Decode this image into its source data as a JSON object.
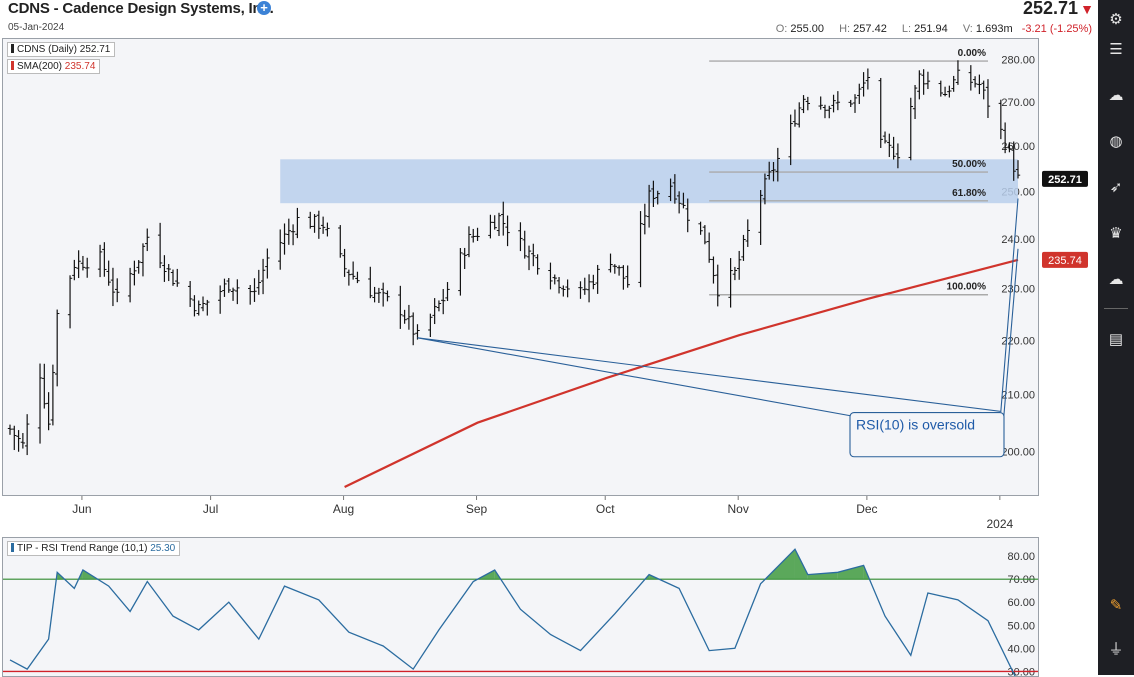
{
  "header": {
    "title": "CDNS - Cadence Design Systems, Inc.",
    "date": "05-Jan-2024",
    "last_price": "252.71",
    "open_label": "O:",
    "open": "255.00",
    "high_label": "H:",
    "high": "257.42",
    "low_label": "L:",
    "low": "251.94",
    "volume_label": "V:",
    "volume": "1.693m",
    "change": "-3.21 (-1.25%)"
  },
  "colors": {
    "accent": "#3b82d6",
    "negative": "#d0222a",
    "sma": "#d0342c",
    "rsi_line": "#2b6ca0",
    "zone": "#b8cfec",
    "overbought_fill": "#3f9a3f",
    "sidebar": "#1e1f24"
  },
  "sidebar_icons": [
    "sliders-icon",
    "settings-icon",
    "brain-icon",
    "globe-icon",
    "rocket-icon",
    "trophy-icon",
    "cloud-icon",
    "document-icon",
    "pencil-icon",
    "plug-icon"
  ],
  "chart_data": [
    {
      "type": "ohlc",
      "legend": [
        {
          "label": "CDNS (Daily)",
          "value": "252.71",
          "color": "#222222"
        },
        {
          "label": "SMA(200)",
          "value": "235.74",
          "color": "#d0342c"
        }
      ],
      "y_axis": {
        "scale": "log",
        "ticks": [
          200,
          210,
          220,
          230,
          240,
          250,
          260,
          270,
          280
        ],
        "range": [
          194,
          283
        ]
      },
      "x_axis": {
        "labels": [
          "Jun",
          "Jul",
          "Aug",
          "Sep",
          "Oct",
          "Nov",
          "Dec",
          "2024"
        ]
      },
      "last_price_tag": "252.71",
      "sma_tag": "235.74",
      "support_zone": [
        247.5,
        257
      ],
      "fib_levels": [
        {
          "label": "0.00%",
          "value": 279.6
        },
        {
          "label": "50.00%",
          "value": 254.2
        },
        {
          "label": "61.80%",
          "value": 248.0
        },
        {
          "label": "100.00%",
          "value": 228.8
        }
      ],
      "annotation": "RSI(10) is oversold",
      "close_path": [
        {
          "date": "2023-05-15",
          "close": 203.9
        },
        {
          "date": "2023-05-18",
          "close": 201.0
        },
        {
          "date": "2023-05-22",
          "close": 214.0
        },
        {
          "date": "2023-05-24",
          "close": 205.0
        },
        {
          "date": "2023-05-26",
          "close": 225.0
        },
        {
          "date": "2023-05-30",
          "close": 235.0
        },
        {
          "date": "2023-06-05",
          "close": 236.0
        },
        {
          "date": "2023-06-09",
          "close": 228.0
        },
        {
          "date": "2023-06-14",
          "close": 236.0
        },
        {
          "date": "2023-06-16",
          "close": 240.5
        },
        {
          "date": "2023-06-22",
          "close": 232.0
        },
        {
          "date": "2023-06-28",
          "close": 226.0
        },
        {
          "date": "2023-07-05",
          "close": 231.0
        },
        {
          "date": "2023-07-11",
          "close": 229.0
        },
        {
          "date": "2023-07-14",
          "close": 236.0
        },
        {
          "date": "2023-07-21",
          "close": 244.0
        },
        {
          "date": "2023-07-27",
          "close": 243.0
        },
        {
          "date": "2023-08-01",
          "close": 234.0
        },
        {
          "date": "2023-08-08",
          "close": 229.0
        },
        {
          "date": "2023-08-14",
          "close": 226.0
        },
        {
          "date": "2023-08-18",
          "close": 220.5
        },
        {
          "date": "2023-08-24",
          "close": 228.0
        },
        {
          "date": "2023-08-30",
          "close": 240.0
        },
        {
          "date": "2023-09-06",
          "close": 244.5
        },
        {
          "date": "2023-09-12",
          "close": 238.0
        },
        {
          "date": "2023-09-19",
          "close": 232.0
        },
        {
          "date": "2023-09-25",
          "close": 229.0
        },
        {
          "date": "2023-10-02",
          "close": 236.0
        },
        {
          "date": "2023-10-06",
          "close": 231.0
        },
        {
          "date": "2023-10-11",
          "close": 249.0
        },
        {
          "date": "2023-10-16",
          "close": 251.5
        },
        {
          "date": "2023-10-20",
          "close": 245.0
        },
        {
          "date": "2023-10-24",
          "close": 240.0
        },
        {
          "date": "2023-10-27",
          "close": 230.0
        },
        {
          "date": "2023-10-31",
          "close": 233.0
        },
        {
          "date": "2023-11-06",
          "close": 249.5
        },
        {
          "date": "2023-11-10",
          "close": 257.0
        },
        {
          "date": "2023-11-16",
          "close": 271.0
        },
        {
          "date": "2023-11-22",
          "close": 269.0
        },
        {
          "date": "2023-11-28",
          "close": 270.5
        },
        {
          "date": "2023-12-01",
          "close": 276.0
        },
        {
          "date": "2023-12-04",
          "close": 260.0
        },
        {
          "date": "2023-12-08",
          "close": 258.5
        },
        {
          "date": "2023-12-13",
          "close": 276.0
        },
        {
          "date": "2023-12-19",
          "close": 272.0
        },
        {
          "date": "2023-12-22",
          "close": 276.0
        },
        {
          "date": "2023-12-27",
          "close": 274.0
        },
        {
          "date": "2024-01-02",
          "close": 261.0
        },
        {
          "date": "2024-01-05",
          "close": 252.71
        }
      ],
      "sma_path": [
        {
          "date": "2023-08-01",
          "value": 194.0
        },
        {
          "date": "2023-09-01",
          "value": 205.0
        },
        {
          "date": "2023-10-01",
          "value": 213.0
        },
        {
          "date": "2023-11-01",
          "value": 221.0
        },
        {
          "date": "2023-12-01",
          "value": 228.0
        },
        {
          "date": "2024-01-05",
          "value": 235.74
        }
      ]
    },
    {
      "type": "line",
      "legend": [
        {
          "label": "TIP - RSI Trend Range (10,1)",
          "value": "25.30",
          "color": "#2b6ca0"
        }
      ],
      "y_axis": {
        "ticks": [
          30,
          40,
          50,
          60,
          70,
          80
        ],
        "range": [
          28,
          87
        ]
      },
      "overbought": 70,
      "oversold": 30,
      "values": [
        {
          "date": "2023-05-15",
          "value": 35
        },
        {
          "date": "2023-05-19",
          "value": 31
        },
        {
          "date": "2023-05-24",
          "value": 44
        },
        {
          "date": "2023-05-26",
          "value": 73
        },
        {
          "date": "2023-05-30",
          "value": 66
        },
        {
          "date": "2023-06-01",
          "value": 74
        },
        {
          "date": "2023-06-07",
          "value": 67
        },
        {
          "date": "2023-06-12",
          "value": 56
        },
        {
          "date": "2023-06-16",
          "value": 69
        },
        {
          "date": "2023-06-22",
          "value": 54
        },
        {
          "date": "2023-06-28",
          "value": 48
        },
        {
          "date": "2023-07-05",
          "value": 60
        },
        {
          "date": "2023-07-12",
          "value": 44
        },
        {
          "date": "2023-07-18",
          "value": 67
        },
        {
          "date": "2023-07-26",
          "value": 61
        },
        {
          "date": "2023-08-02",
          "value": 47
        },
        {
          "date": "2023-08-10",
          "value": 41
        },
        {
          "date": "2023-08-17",
          "value": 31
        },
        {
          "date": "2023-08-23",
          "value": 48
        },
        {
          "date": "2023-08-31",
          "value": 69
        },
        {
          "date": "2023-09-05",
          "value": 74
        },
        {
          "date": "2023-09-11",
          "value": 57
        },
        {
          "date": "2023-09-18",
          "value": 46
        },
        {
          "date": "2023-09-25",
          "value": 39
        },
        {
          "date": "2023-10-03",
          "value": 55
        },
        {
          "date": "2023-10-11",
          "value": 72
        },
        {
          "date": "2023-10-18",
          "value": 66
        },
        {
          "date": "2023-10-25",
          "value": 39
        },
        {
          "date": "2023-10-31",
          "value": 40
        },
        {
          "date": "2023-11-06",
          "value": 68
        },
        {
          "date": "2023-11-14",
          "value": 83
        },
        {
          "date": "2023-11-17",
          "value": 72
        },
        {
          "date": "2023-11-24",
          "value": 73
        },
        {
          "date": "2023-11-30",
          "value": 76
        },
        {
          "date": "2023-12-05",
          "value": 54
        },
        {
          "date": "2023-12-11",
          "value": 37
        },
        {
          "date": "2023-12-15",
          "value": 64
        },
        {
          "date": "2023-12-22",
          "value": 61
        },
        {
          "date": "2023-12-29",
          "value": 52
        },
        {
          "date": "2024-01-05",
          "value": 25.3
        }
      ]
    }
  ]
}
